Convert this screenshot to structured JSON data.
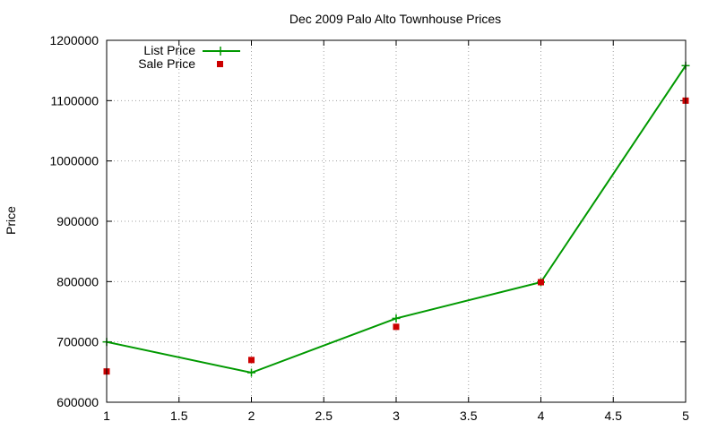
{
  "chart_data": {
    "type": "line",
    "title": "Dec 2009 Palo Alto Townhouse Prices",
    "xlabel": "",
    "ylabel": "Price",
    "xlim": [
      1,
      5
    ],
    "ylim": [
      600000,
      1200000
    ],
    "x_ticks": [
      1,
      1.5,
      2,
      2.5,
      3,
      3.5,
      4,
      4.5,
      5
    ],
    "x_tick_labels": [
      "1",
      "1.5",
      "2",
      "2.5",
      "3",
      "3.5",
      "4",
      "4.5",
      "5"
    ],
    "y_ticks": [
      600000,
      700000,
      800000,
      900000,
      1000000,
      1100000,
      1200000
    ],
    "y_tick_labels": [
      "600000",
      "700000",
      "800000",
      "900000",
      "1000000",
      "1100000",
      "1200000"
    ],
    "grid": true,
    "legend_position": "top-left",
    "series": [
      {
        "name": "List Price",
        "style": "line-with-plus-markers",
        "color": "#009900",
        "points": [
          {
            "x": 1,
            "y": 700000
          },
          {
            "x": 2,
            "y": 649000
          },
          {
            "x": 3,
            "y": 739000
          },
          {
            "x": 4,
            "y": 799000
          },
          {
            "x": 5,
            "y": 1158000
          }
        ]
      },
      {
        "name": "Sale Price",
        "style": "square-markers",
        "color": "#cc0000",
        "points": [
          {
            "x": 1,
            "y": 651000
          },
          {
            "x": 2,
            "y": 670000
          },
          {
            "x": 3,
            "y": 725000
          },
          {
            "x": 4,
            "y": 799000
          },
          {
            "x": 5,
            "y": 1100000
          }
        ]
      }
    ]
  }
}
